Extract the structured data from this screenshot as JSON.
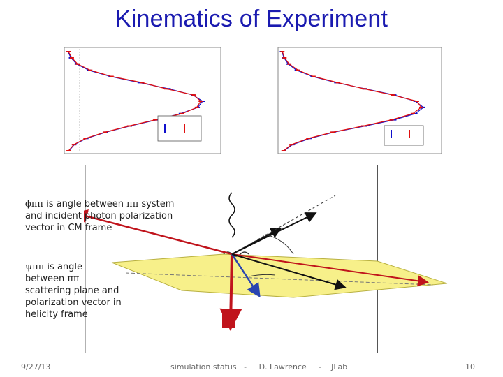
{
  "slide": {
    "title": "Kinematics of Experiment"
  },
  "captions": {
    "phi": {
      "symbol": "ϕππ",
      "text_a": " is angle between ",
      "symbol_b": "ππ",
      "text_b": " system and incident photon polarization vector in CM frame"
    },
    "psi": {
      "symbol": "ψππ",
      "text_a": " is angle between ",
      "symbol_b": "ππ",
      "text_b": " scattering plane and polarization vector in helicity frame"
    }
  },
  "footer": {
    "date": "9/27/13",
    "center": "simulation status   -     D. Lawrence     -    JLab",
    "page": "10"
  },
  "colors": {
    "title": "#1a1ab0",
    "series_blue": "#1010cc",
    "series_red": "#e01010",
    "plane": "#f7f08a",
    "arrow_red": "#c0141c"
  },
  "chart_data": [
    {
      "type": "scatter",
      "series": [
        {
          "values": [
            2,
            8,
            20,
            45,
            90,
            150,
            210,
            260,
            280,
            270,
            235,
            185,
            130,
            80,
            40,
            15,
            4
          ]
        },
        {
          "values": [
            3,
            10,
            22,
            48,
            92,
            155,
            205,
            262,
            276,
            268,
            238,
            182,
            128,
            78,
            38,
            14,
            3
          ]
        }
      ]
    },
    {
      "type": "scatter",
      "series": [
        {
          "values": [
            2,
            6,
            14,
            30,
            60,
            105,
            160,
            215,
            255,
            270,
            255,
            215,
            160,
            100,
            55,
            22,
            6
          ]
        },
        {
          "values": [
            3,
            7,
            16,
            33,
            62,
            108,
            158,
            212,
            258,
            266,
            250,
            210,
            156,
            98,
            52,
            20,
            5
          ]
        }
      ]
    }
  ]
}
